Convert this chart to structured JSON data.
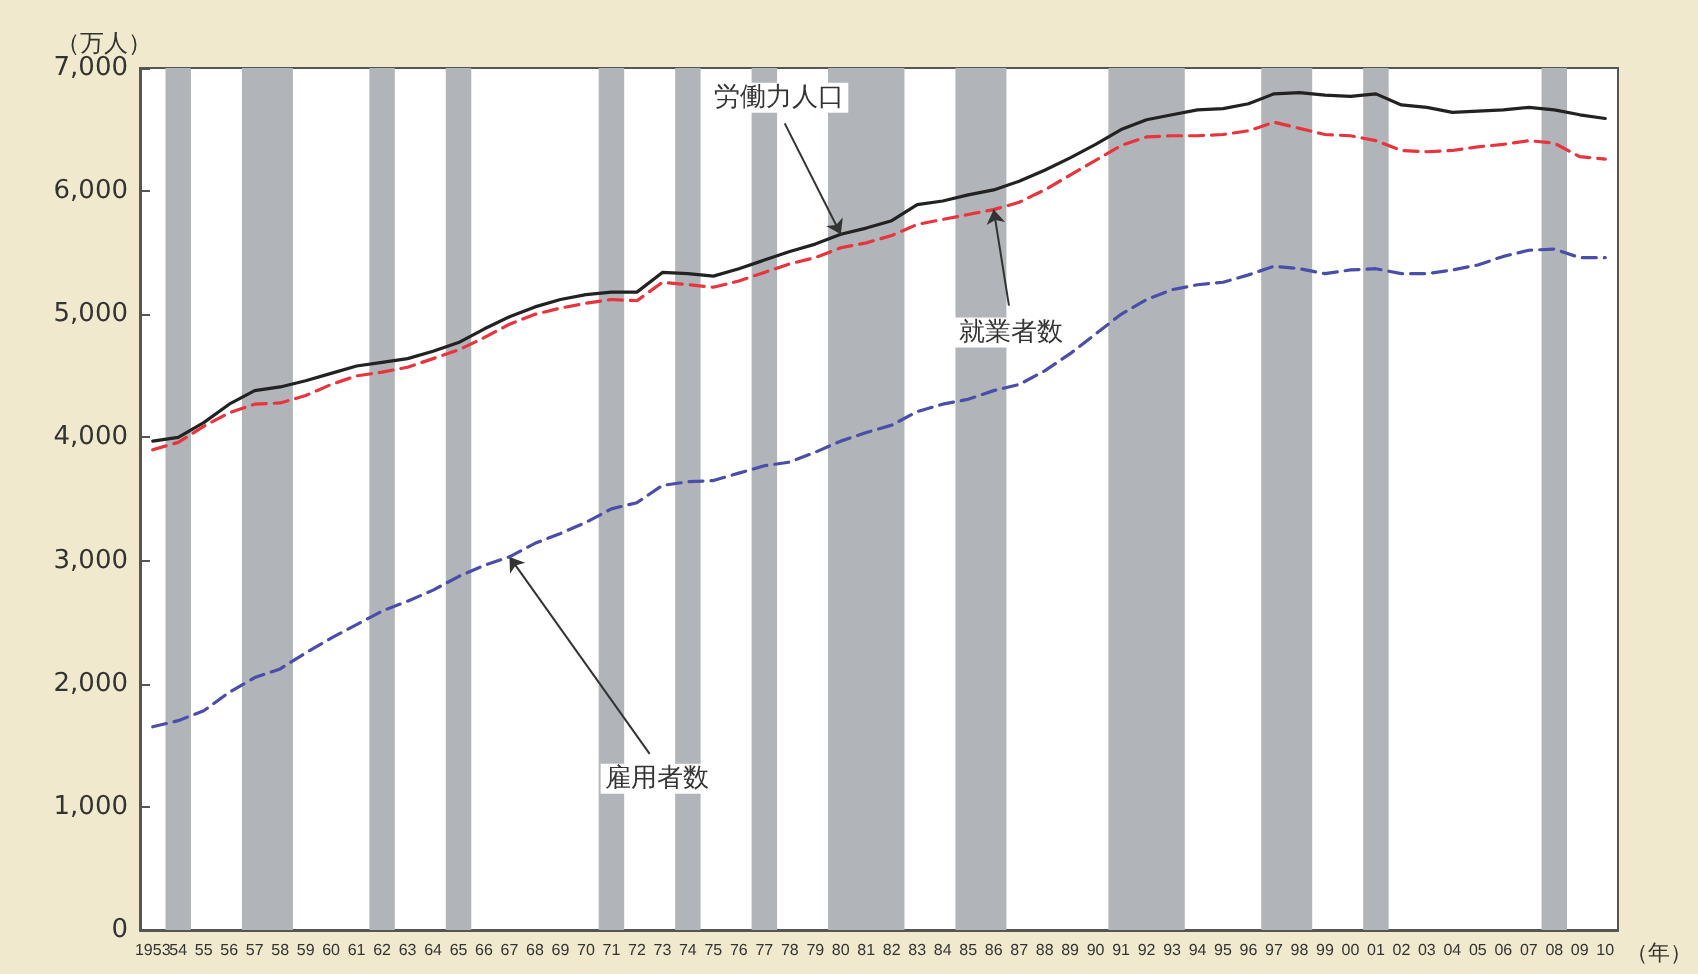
{
  "chart_data": {
    "type": "line",
    "xlabel": "（年）",
    "ylabel": "（万人）",
    "ylim": [
      0,
      7000
    ],
    "yticks": [
      {
        "value": 0,
        "label": "0"
      },
      {
        "value": 1000,
        "label": "1,000"
      },
      {
        "value": 2000,
        "label": "2,000"
      },
      {
        "value": 3000,
        "label": "3,000"
      },
      {
        "value": 4000,
        "label": "4,000"
      },
      {
        "value": 5000,
        "label": "5,000"
      },
      {
        "value": 6000,
        "label": "6,000"
      },
      {
        "value": 7000,
        "label": "7,000"
      }
    ],
    "categories": [
      "1953",
      "54",
      "55",
      "56",
      "57",
      "58",
      "59",
      "60",
      "61",
      "62",
      "63",
      "64",
      "65",
      "66",
      "67",
      "68",
      "69",
      "70",
      "71",
      "72",
      "73",
      "74",
      "75",
      "76",
      "77",
      "78",
      "79",
      "80",
      "81",
      "82",
      "83",
      "84",
      "85",
      "86",
      "87",
      "88",
      "89",
      "90",
      "91",
      "92",
      "93",
      "94",
      "95",
      "96",
      "97",
      "98",
      "99",
      "00",
      "01",
      "02",
      "03",
      "04",
      "05",
      "06",
      "07",
      "08",
      "09",
      "10"
    ],
    "grid": false,
    "marker": "none",
    "bands": [
      {
        "axis": "x",
        "from": "54",
        "to": "54",
        "color": "#b1b4b9"
      },
      {
        "axis": "x",
        "from": "57",
        "to": "58",
        "color": "#b1b4b9"
      },
      {
        "axis": "x",
        "from": "62",
        "to": "62",
        "color": "#b1b4b9"
      },
      {
        "axis": "x",
        "from": "65",
        "to": "65",
        "color": "#b1b4b9"
      },
      {
        "axis": "x",
        "from": "71",
        "to": "71",
        "color": "#b1b4b9"
      },
      {
        "axis": "x",
        "from": "74",
        "to": "74",
        "color": "#b1b4b9"
      },
      {
        "axis": "x",
        "from": "77",
        "to": "77",
        "color": "#b1b4b9"
      },
      {
        "axis": "x",
        "from": "80",
        "to": "82",
        "color": "#b1b4b9"
      },
      {
        "axis": "x",
        "from": "85",
        "to": "86",
        "color": "#b1b4b9"
      },
      {
        "axis": "x",
        "from": "91",
        "to": "93",
        "color": "#b1b4b9"
      },
      {
        "axis": "x",
        "from": "97",
        "to": "98",
        "color": "#b1b4b9"
      },
      {
        "axis": "x",
        "from": "01",
        "to": "01",
        "color": "#b1b4b9"
      },
      {
        "axis": "x",
        "from": "08",
        "to": "08",
        "color": "#b1b4b9"
      }
    ],
    "annotations": [
      {
        "text": "労働力人口",
        "x": "80",
        "y": 5650
      },
      {
        "text": "就業者数",
        "x": "86",
        "y": 5850
      },
      {
        "text": "雇用者数",
        "x": "67",
        "y": 3030
      }
    ],
    "series": [
      {
        "color": "#222222",
        "line_style": "solid",
        "values": [
          3970,
          4000,
          4120,
          4270,
          4380,
          4410,
          4460,
          4520,
          4580,
          4610,
          4640,
          4700,
          4770,
          4880,
          4980,
          5060,
          5120,
          5160,
          5180,
          5180,
          5340,
          5330,
          5310,
          5370,
          5440,
          5510,
          5570,
          5650,
          5700,
          5760,
          5890,
          5920,
          5970,
          6010,
          6080,
          6170,
          6270,
          6380,
          6500,
          6580,
          6620,
          6660,
          6670,
          6710,
          6790,
          6800,
          6780,
          6770,
          6790,
          6700,
          6680,
          6640,
          6650,
          6660,
          6680,
          6660,
          6620,
          6590
        ]
      },
      {
        "color": "#e8343c",
        "line_style": "dashed",
        "values": [
          3900,
          3960,
          4090,
          4200,
          4270,
          4280,
          4340,
          4430,
          4500,
          4530,
          4570,
          4640,
          4710,
          4810,
          4920,
          5000,
          5050,
          5090,
          5120,
          5110,
          5260,
          5240,
          5220,
          5270,
          5340,
          5410,
          5460,
          5540,
          5580,
          5640,
          5730,
          5770,
          5810,
          5850,
          5910,
          6010,
          6130,
          6250,
          6370,
          6440,
          6450,
          6450,
          6460,
          6490,
          6560,
          6510,
          6460,
          6450,
          6410,
          6330,
          6320,
          6330,
          6360,
          6380,
          6410,
          6390,
          6280,
          6260
        ]
      },
      {
        "color": "#4a4ea8",
        "line_style": "dashed",
        "values": [
          1650,
          1700,
          1780,
          1930,
          2050,
          2120,
          2250,
          2370,
          2480,
          2590,
          2670,
          2760,
          2870,
          2960,
          3030,
          3140,
          3220,
          3310,
          3420,
          3470,
          3610,
          3640,
          3650,
          3710,
          3770,
          3800,
          3880,
          3970,
          4040,
          4100,
          4210,
          4270,
          4310,
          4380,
          4430,
          4540,
          4680,
          4840,
          5000,
          5120,
          5200,
          5240,
          5260,
          5320,
          5390,
          5370,
          5330,
          5360,
          5370,
          5330,
          5330,
          5360,
          5400,
          5470,
          5520,
          5530,
          5460,
          5460
        ]
      }
    ]
  }
}
